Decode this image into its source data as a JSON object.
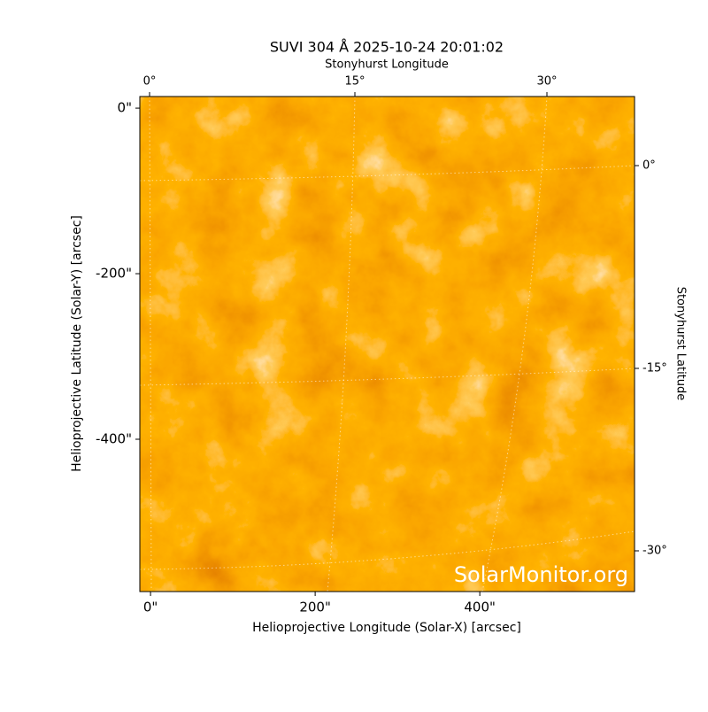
{
  "chart_data": {
    "type": "image",
    "title": "SUVI 304 Å 2025-10-24 20:01:02",
    "xlabel": "Helioprojective Longitude (Solar-X) [arcsec]",
    "ylabel": "Helioprojective Latitude (Solar-Y) [arcsec]",
    "x2label": "Stonyhurst Longitude",
    "y2label": "Stonyhurst Latitude",
    "watermark": "SolarMonitor.org",
    "xlim": [
      -13,
      588
    ],
    "ylim": [
      -584,
      14
    ],
    "xticks": [
      {
        "value": 0,
        "label": "0\""
      },
      {
        "value": 200,
        "label": "200\""
      },
      {
        "value": 400,
        "label": "400\""
      }
    ],
    "yticks": [
      {
        "value": 0,
        "label": "0\""
      },
      {
        "value": -200,
        "label": "-200\""
      },
      {
        "value": -400,
        "label": "-400\""
      }
    ],
    "x2ticks": [
      {
        "value": 0,
        "label": "0°"
      },
      {
        "value": 15,
        "label": "15°"
      },
      {
        "value": 30,
        "label": "30°"
      }
    ],
    "y2ticks": [
      {
        "value": 0,
        "label": "0°"
      },
      {
        "value": -15,
        "label": "-15°"
      },
      {
        "value": -30,
        "label": "-30°"
      }
    ]
  }
}
